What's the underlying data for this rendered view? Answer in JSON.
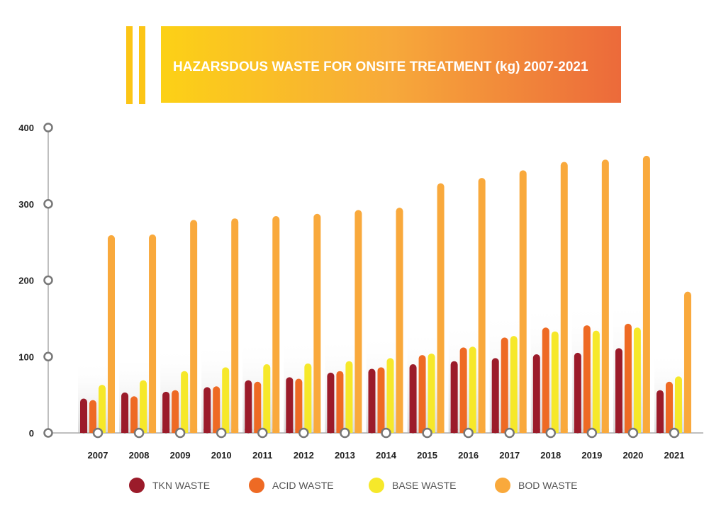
{
  "chart_data": {
    "type": "bar",
    "title": "HAZARSDOUS WASTE FOR ONSITE TREATMENT (kg) 2007-2021",
    "xlabel": "",
    "ylabel": "",
    "ylim": [
      0,
      400
    ],
    "yticks": [
      "0",
      "100",
      "200",
      "300",
      "400"
    ],
    "categories": [
      "2007",
      "2008",
      "2009",
      "2010",
      "2011",
      "2012",
      "2013",
      "2014",
      "2015",
      "2016",
      "2017",
      "2018",
      "2019",
      "2020",
      "2021"
    ],
    "legend_position": "bottom",
    "grid": false,
    "series": [
      {
        "name": "TKN WASTE",
        "color": "#9b1b2a",
        "values": [
          45,
          53,
          54,
          60,
          69,
          73,
          79,
          84,
          90,
          94,
          98,
          103,
          105,
          111,
          56
        ]
      },
      {
        "name": "ACID WASTE",
        "color": "#ee6a24",
        "values": [
          43,
          48,
          56,
          61,
          67,
          71,
          81,
          86,
          102,
          112,
          125,
          138,
          141,
          143,
          67
        ]
      },
      {
        "name": "BASE WASTE",
        "color": "#f6e82a",
        "values": [
          63,
          69,
          81,
          86,
          90,
          91,
          94,
          98,
          104,
          113,
          127,
          133,
          134,
          138,
          74
        ]
      },
      {
        "name": "BOD WASTE",
        "color": "#f9a93c",
        "values": [
          259,
          260,
          279,
          281,
          284,
          287,
          292,
          295,
          327,
          334,
          344,
          355,
          358,
          363,
          185
        ]
      }
    ]
  }
}
